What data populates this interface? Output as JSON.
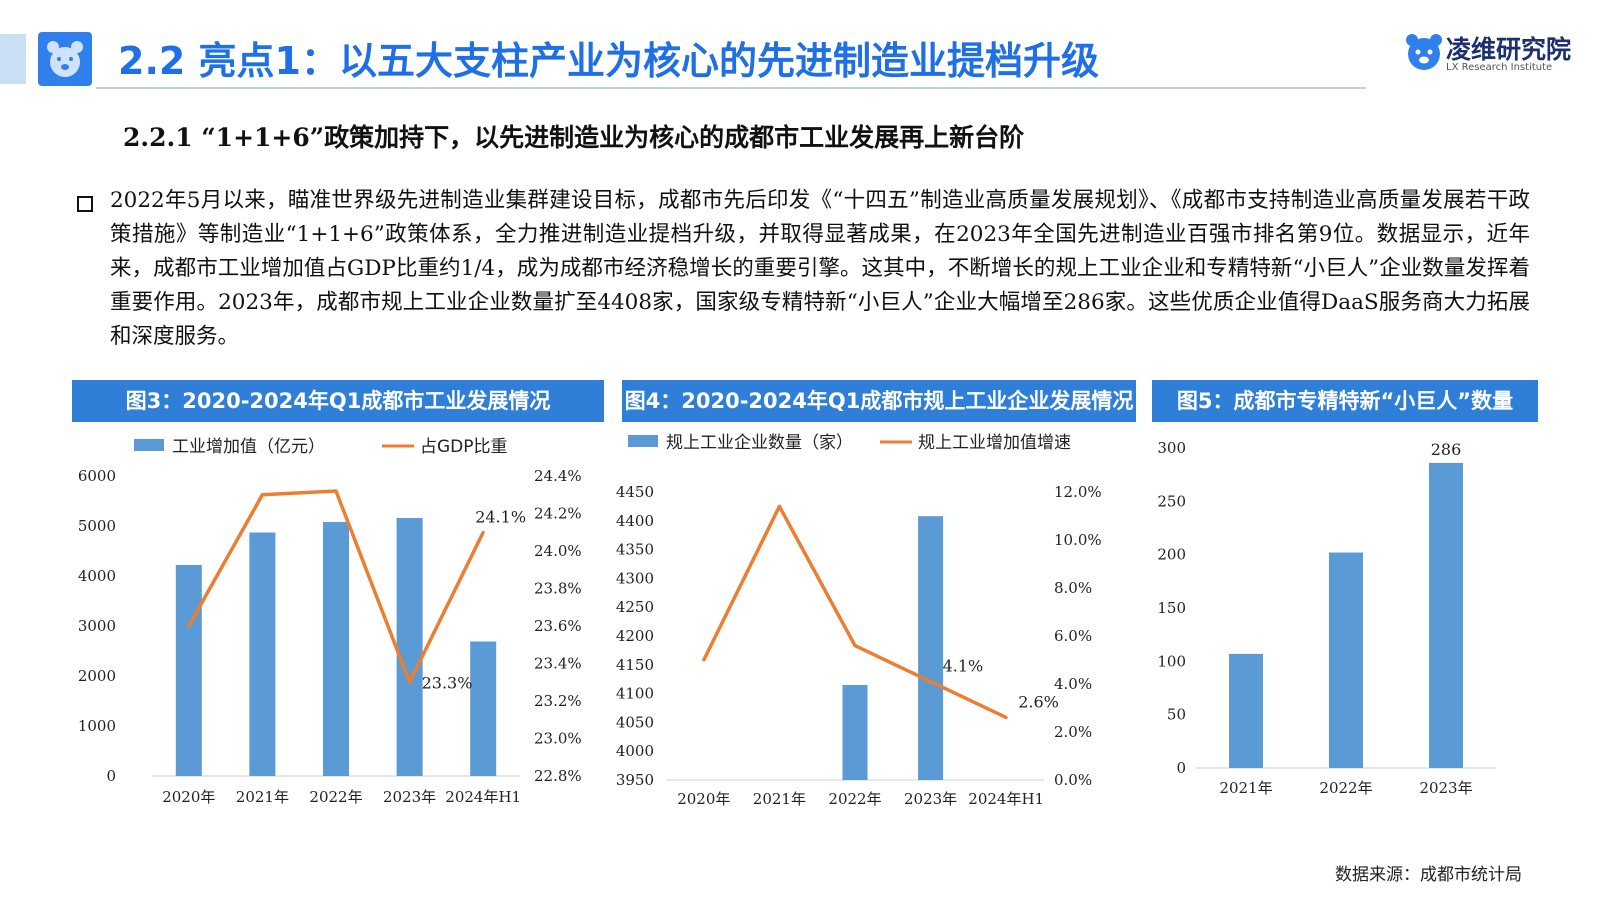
{
  "header": {
    "title": "2.2 亮点1：以五大支柱产业为核心的先进制造业提档升级",
    "logo_text": "凌维研究院",
    "logo_sub": "LX Research Institute"
  },
  "subheading": "2.2.1 “1+1+6”政策加持下，以先进制造业为核心的成都市工业发展再上新台阶",
  "body_paragraph": "2022年5月以来，瞄准世界级先进制造业集群建设目标，成都市先后印发《“十四五”制造业高质量发展规划》、《成都市支持制造业高质量发展若干政策措施》等制造业“1+1+6”政策体系，全力推进制造业提档升级，并取得显著成果，在2023年全国先进制造业百强市排名第9位。数据显示，近年来，成都市工业增加值占GDP比重约1/4，成为成都市经济稳增长的重要引擎。这其中，不断增长的规上工业企业和专精特新“小巨人”企业数量发挥着重要作用。2023年，成都市规上工业企业数量扩至4408家，国家级专精特新“小巨人”企业大幅增至286家。这些优质企业值得DaaS服务商大力拓展和深度服务。",
  "panels": {
    "fig3_title": "图3：2020-2024年Q1成都市工业发展情况",
    "fig4_title": "图4：2020-2024年Q1成都市规上工业企业发展情况",
    "fig5_title": "图5：成都市专精特新“小巨人”数量"
  },
  "colors": {
    "bar": "#5b9bd5",
    "line": "#ed7d31",
    "header": "#2f7fd9",
    "title": "#1f6fe6"
  },
  "source": "数据来源：成都市统计局",
  "chart_data": [
    {
      "type": "bar",
      "id": "fig3",
      "categories": [
        "2020年",
        "2021年",
        "2022年",
        "2023年",
        "2024年H1"
      ],
      "series": [
        {
          "name": "工业增加值（亿元）",
          "type": "bar",
          "axis": "left",
          "values": [
            4220,
            4870,
            5080,
            5160,
            2690
          ]
        },
        {
          "name": "占GDP比重",
          "type": "line",
          "axis": "right",
          "values": [
            23.6,
            24.3,
            24.32,
            23.3,
            24.1
          ],
          "labels": [
            "",
            "",
            "",
            "23.3%",
            "24.1%"
          ]
        }
      ],
      "y_left": {
        "ticks": [
          "0",
          "1000",
          "2000",
          "3000",
          "4000",
          "5000",
          "6000"
        ],
        "range": [
          0,
          6000
        ]
      },
      "y_right": {
        "ticks": [
          "22.8%",
          "23.0%",
          "23.2%",
          "23.4%",
          "23.6%",
          "23.8%",
          "24.0%",
          "24.2%",
          "24.4%"
        ],
        "range": [
          22.8,
          24.4
        ]
      },
      "legend": "top"
    },
    {
      "type": "bar",
      "id": "fig4",
      "categories": [
        "2020年",
        "2021年",
        "2022年",
        "2023年",
        "2024年H1"
      ],
      "series": [
        {
          "name": "规上工业企业数量（家）",
          "type": "bar",
          "axis": "left",
          "values": [
            null,
            null,
            4115,
            4408,
            null
          ]
        },
        {
          "name": "规上工业增加值增速",
          "type": "line",
          "axis": "right",
          "values": [
            5.0,
            11.4,
            5.6,
            4.1,
            2.6
          ],
          "labels": [
            "",
            "",
            "",
            "4.1%",
            "2.6%"
          ]
        }
      ],
      "y_left": {
        "ticks": [
          "3950",
          "4000",
          "4050",
          "4100",
          "4150",
          "4200",
          "4250",
          "4300",
          "4350",
          "4400",
          "4450"
        ],
        "range": [
          3950,
          4450
        ]
      },
      "y_right": {
        "ticks": [
          "0.0%",
          "2.0%",
          "4.0%",
          "6.0%",
          "8.0%",
          "10.0%",
          "12.0%"
        ],
        "range": [
          0,
          12
        ]
      },
      "legend": "top"
    },
    {
      "type": "bar",
      "id": "fig5",
      "categories": [
        "2021年",
        "2022年",
        "2023年"
      ],
      "series": [
        {
          "name": "",
          "type": "bar",
          "axis": "left",
          "values": [
            107,
            202,
            286
          ],
          "labels": [
            "",
            "",
            "286"
          ]
        }
      ],
      "y_left": {
        "ticks": [
          "0",
          "50",
          "100",
          "150",
          "200",
          "250",
          "300"
        ],
        "range": [
          0,
          300
        ]
      }
    }
  ]
}
